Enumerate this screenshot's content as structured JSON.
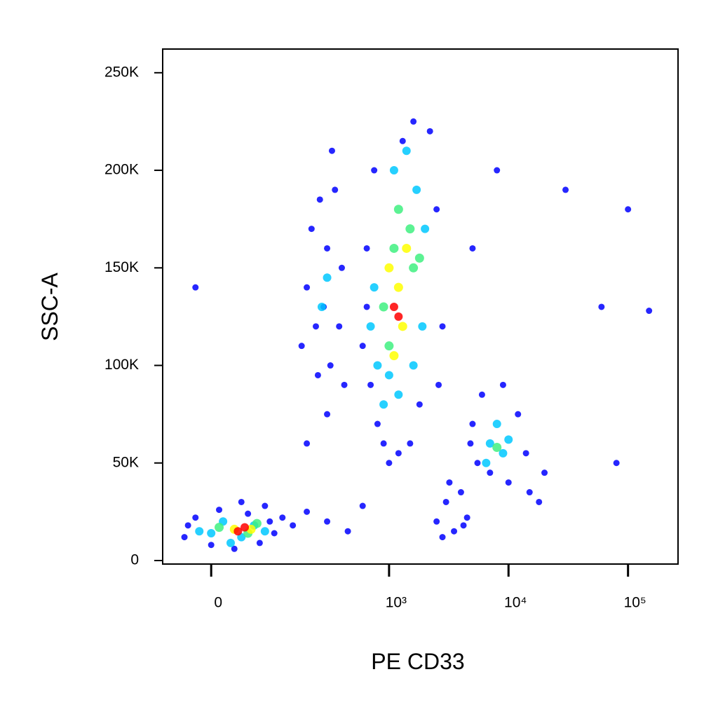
{
  "chart_data": {
    "type": "scatter",
    "x_label": "PE CD33",
    "y_label": "SSC-A",
    "xscale": "biexponential",
    "xlim": [
      -70,
      262144
    ],
    "ylim": [
      -1800,
      262144
    ],
    "xticks": [
      {
        "value": 0,
        "label": "0"
      },
      {
        "value": 1000,
        "label": "10³"
      },
      {
        "value": 10000,
        "label": "10⁴"
      },
      {
        "value": 100000,
        "label": "10⁵"
      }
    ],
    "yticks": [
      {
        "value": 0,
        "label": "0"
      },
      {
        "value": 50000,
        "label": "50K"
      },
      {
        "value": 100000,
        "label": "100K"
      },
      {
        "value": 150000,
        "label": "150K"
      },
      {
        "value": 200000,
        "label": "200K"
      },
      {
        "value": 250000,
        "label": "250K"
      }
    ],
    "series": [
      {
        "color": "#0000ff",
        "x": [
          -35,
          -20,
          0,
          10,
          30,
          50,
          70,
          90,
          100,
          80,
          -30,
          40,
          120,
          150,
          200,
          300,
          450,
          600,
          180,
          200,
          220,
          250,
          260,
          280,
          300,
          320,
          350,
          380,
          400,
          420,
          240,
          330,
          300,
          600,
          650,
          700,
          750,
          800,
          900,
          1000,
          1200,
          1500,
          2500,
          2800,
          2200,
          1600,
          1300,
          2600,
          1800,
          650,
          4800,
          5000,
          6000,
          7000,
          10000,
          12000,
          14000,
          15000,
          18000,
          9000,
          20000,
          5500,
          2500,
          3000,
          3500,
          4000,
          4500,
          3200,
          2800,
          4200,
          30000,
          60000,
          100000,
          80000,
          150000,
          8000,
          5000,
          200,
          -20
        ],
        "y": [
          12000,
          22000,
          8000,
          26000,
          6000,
          24000,
          9000,
          20000,
          14000,
          28000,
          18000,
          30000,
          22000,
          18000,
          25000,
          20000,
          15000,
          28000,
          110000,
          140000,
          170000,
          95000,
          185000,
          130000,
          160000,
          100000,
          190000,
          120000,
          150000,
          90000,
          120000,
          210000,
          75000,
          110000,
          160000,
          90000,
          200000,
          70000,
          60000,
          50000,
          55000,
          60000,
          180000,
          120000,
          220000,
          225000,
          215000,
          90000,
          80000,
          130000,
          60000,
          70000,
          85000,
          45000,
          40000,
          75000,
          55000,
          35000,
          30000,
          90000,
          45000,
          50000,
          20000,
          30000,
          15000,
          35000,
          22000,
          40000,
          12000,
          18000,
          190000,
          130000,
          180000,
          50000,
          128000,
          200000,
          160000,
          60000,
          140000
        ]
      },
      {
        "color": "#00c8ff",
        "x": [
          0,
          15,
          40,
          60,
          80,
          -15,
          25,
          270,
          300,
          700,
          800,
          900,
          1000,
          1100,
          1400,
          1700,
          2000,
          1900,
          750,
          1200,
          1600,
          7000,
          8000,
          9000,
          6500,
          10000
        ],
        "y": [
          14000,
          20000,
          12000,
          18000,
          15000,
          15000,
          9000,
          130000,
          145000,
          120000,
          100000,
          80000,
          95000,
          200000,
          210000,
          190000,
          170000,
          120000,
          140000,
          85000,
          100000,
          60000,
          70000,
          55000,
          50000,
          62000
        ]
      },
      {
        "color": "#40f080",
        "x": [
          10,
          50,
          65,
          900,
          1000,
          1200,
          1500,
          1600,
          1100,
          1800,
          8000
        ],
        "y": [
          17000,
          14000,
          19000,
          130000,
          110000,
          180000,
          170000,
          150000,
          160000,
          155000,
          58000
        ]
      },
      {
        "color": "#ffff00",
        "x": [
          30,
          55,
          1000,
          1200,
          1300,
          1100,
          1400
        ],
        "y": [
          16000,
          16000,
          150000,
          140000,
          120000,
          105000,
          160000
        ]
      },
      {
        "color": "#ff0000",
        "x": [
          35,
          45,
          1100,
          1200
        ],
        "y": [
          15000,
          17000,
          130000,
          125000
        ]
      }
    ]
  }
}
